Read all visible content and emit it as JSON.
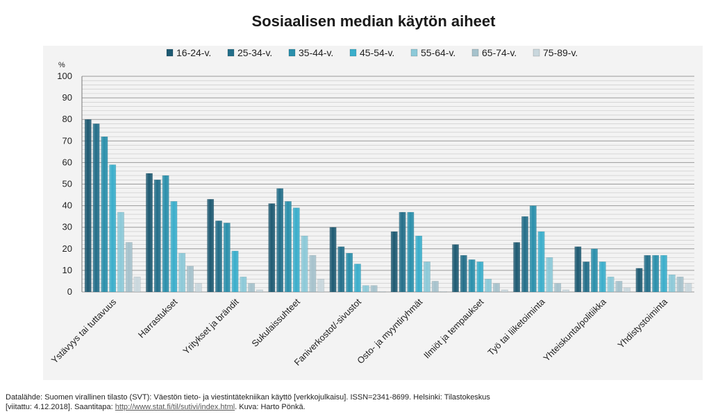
{
  "chart_data": {
    "type": "bar",
    "title": "Sosiaalisen median käytön aiheet",
    "ylabel": "%",
    "ylim": [
      0,
      100
    ],
    "yticks": [
      0,
      10,
      20,
      30,
      40,
      50,
      60,
      70,
      80,
      90,
      100
    ],
    "grid": true,
    "legend_position": "top",
    "categories": [
      "Ystävyys tai tuttavuus",
      "Harrastukset",
      "Yritykset ja brändit",
      "Sukulaissuhteet",
      "Faniverkostot/-sivustot",
      "Osto- ja myyntiryhmät",
      "Ilmiöt ja tempaukset",
      "Työ tai liiketoiminta",
      "Yhteiskunta/politiikka",
      "Yhdistystoiminta"
    ],
    "series": [
      {
        "name": "16-24-v.",
        "color": "#1e5a72",
        "values": [
          80,
          55,
          43,
          41,
          30,
          28,
          22,
          23,
          21,
          11
        ]
      },
      {
        "name": "25-34-v.",
        "color": "#236e89",
        "values": [
          78,
          52,
          33,
          48,
          21,
          37,
          17,
          35,
          14,
          17
        ]
      },
      {
        "name": "35-44-v.",
        "color": "#2a8fab",
        "values": [
          72,
          54,
          32,
          42,
          18,
          37,
          15,
          40,
          20,
          17
        ]
      },
      {
        "name": "45-54-v.",
        "color": "#3aaecb",
        "values": [
          59,
          42,
          19,
          39,
          13,
          26,
          14,
          28,
          14,
          17
        ]
      },
      {
        "name": "55-64-v.",
        "color": "#8cc9d8",
        "values": [
          37,
          18,
          7,
          26,
          3,
          14,
          6,
          16,
          7,
          8
        ]
      },
      {
        "name": "65-74-v.",
        "color": "#a6c2cc",
        "values": [
          23,
          12,
          4,
          17,
          3,
          5,
          4,
          4,
          5,
          7
        ]
      },
      {
        "name": "75-89-v.",
        "color": "#c9d7dd",
        "values": [
          7,
          4,
          1,
          6,
          0,
          0,
          1,
          1,
          2,
          4
        ]
      }
    ]
  },
  "footer": {
    "line1": "Datalähde: Suomen virallinen tilasto (SVT): Väestön tieto- ja viestintätekniikan käyttö [verkkojulkaisu]. ISSN=2341-8699. Helsinki: Tilastokeskus",
    "line2_prefix": "[viitattu: 4.12.2018]. Saantitapa: ",
    "link": "http://www.stat.fi/til/sutivi/index.html",
    "line2_suffix": ". Kuva: Harto Pönkä."
  }
}
